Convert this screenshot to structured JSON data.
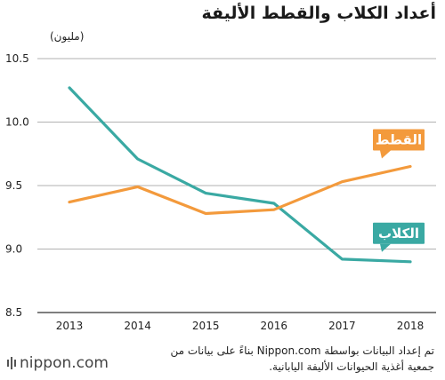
{
  "title": "أعداد الكلاب والقطط الأليفة",
  "source_note": "تم إعداد البيانات بواسطة Nippon.com بناءً على بيانات من جمعية أغذية الحيوانات الأليفة اليابانية.",
  "logo_text": "nippon.com",
  "chart_data": {
    "type": "line",
    "title": "أعداد الكلاب والقطط الأليفة",
    "unit_label": "(مليون)",
    "x": [
      2013,
      2014,
      2015,
      2016,
      2017,
      2018
    ],
    "ylim": [
      8.5,
      10.5
    ],
    "yticks": [
      "8.5",
      "9.0",
      "9.5",
      "10.0",
      "10.5"
    ],
    "grid": true,
    "series": [
      {
        "name": "الكلاب",
        "color": "#3aa9a3",
        "values": [
          10.27,
          9.71,
          9.44,
          9.36,
          8.92,
          8.9
        ]
      },
      {
        "name": "القطط",
        "color": "#f39a3c",
        "values": [
          9.37,
          9.49,
          9.28,
          9.31,
          9.53,
          9.65
        ]
      }
    ]
  }
}
